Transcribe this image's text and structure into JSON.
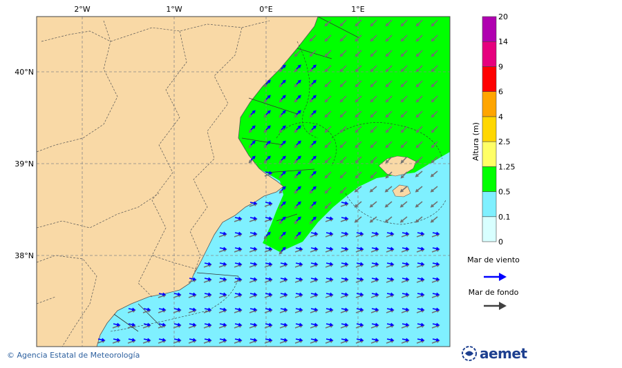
{
  "map": {
    "lon_labels": [
      "2°W",
      "1°W",
      "0°E",
      "1°E"
    ],
    "lat_labels": [
      "40°N",
      "39°N",
      "38°N"
    ]
  },
  "legend": {
    "title": "Altura (m)",
    "levels": [
      {
        "value": "0",
        "color": "#d8ffff"
      },
      {
        "value": "0.1",
        "color": "#7ff0ff"
      },
      {
        "value": "0.5",
        "color": "#00ff00"
      },
      {
        "value": "1.25",
        "color": "#ffff66"
      },
      {
        "value": "2.5",
        "color": "#ffd700"
      },
      {
        "value": "4",
        "color": "#ffa500"
      },
      {
        "value": "6",
        "color": "#ff0000"
      },
      {
        "value": "9",
        "color": "#e6007e"
      },
      {
        "value": "14",
        "color": "#b000b0"
      },
      {
        "value": "20",
        "color": null
      }
    ],
    "wind_sea_label": "Mar de viento",
    "swell_label": "Mar de fondo",
    "wind_sea_color": "#0000ff",
    "swell_color": "#404040"
  },
  "colors": {
    "land": "#f9d9a6",
    "sea_low": "#7ff0ff",
    "sea_mid": "#00ff00"
  },
  "footer": {
    "copyright": "© Agencia Estatal de Meteorología",
    "logo_text": "aemet"
  }
}
